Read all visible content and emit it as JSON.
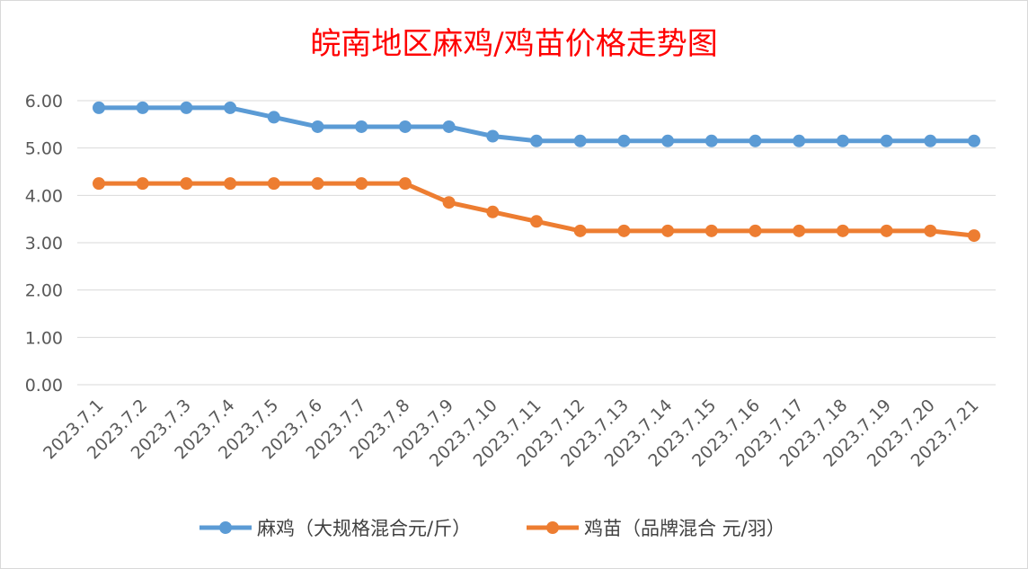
{
  "chart_data": {
    "type": "line",
    "title": "皖南地区麻鸡/鸡苗价格走势图",
    "categories": [
      "2023.7.1",
      "2023.7.2",
      "2023.7.3",
      "2023.7.4",
      "2023.7.5",
      "2023.7.6",
      "2023.7.7",
      "2023.7.8",
      "2023.7.9",
      "2023.7.10",
      "2023.7.11",
      "2023.7.12",
      "2023.7.13",
      "2023.7.14",
      "2023.7.15",
      "2023.7.16",
      "2023.7.17",
      "2023.7.18",
      "2023.7.19",
      "2023.7.20",
      "2023.7.21"
    ],
    "series": [
      {
        "name": "麻鸡（大规格混合元/斤）",
        "color": "#5b9bd5",
        "values": [
          5.85,
          5.85,
          5.85,
          5.85,
          5.65,
          5.45,
          5.45,
          5.45,
          5.45,
          5.25,
          5.15,
          5.15,
          5.15,
          5.15,
          5.15,
          5.15,
          5.15,
          5.15,
          5.15,
          5.15,
          5.15
        ]
      },
      {
        "name": "鸡苗（品牌混合 元/羽）",
        "color": "#ed7d31",
        "values": [
          4.25,
          4.25,
          4.25,
          4.25,
          4.25,
          4.25,
          4.25,
          4.25,
          3.85,
          3.65,
          3.45,
          3.25,
          3.25,
          3.25,
          3.25,
          3.25,
          3.25,
          3.25,
          3.25,
          3.25,
          3.15
        ]
      }
    ],
    "ylim": [
      0,
      6
    ],
    "yticks": [
      "0.00",
      "1.00",
      "2.00",
      "3.00",
      "4.00",
      "5.00",
      "6.00"
    ],
    "grid": true,
    "legend": "bottom"
  }
}
